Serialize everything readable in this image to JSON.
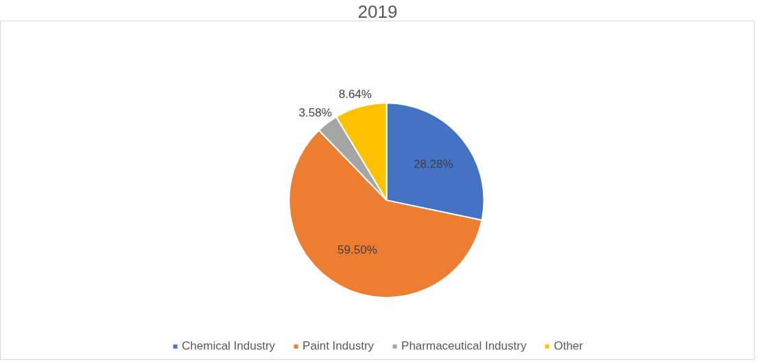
{
  "chart_data": {
    "type": "pie",
    "title": "2019",
    "categories": [
      "Chemical Industry",
      "Paint Industry",
      "Pharmaceutical Industry",
      "Other"
    ],
    "values": [
      28.28,
      59.5,
      3.58,
      8.64
    ],
    "colors": [
      "#4472c4",
      "#ed7d31",
      "#a5a5a5",
      "#ffc000"
    ],
    "value_labels": [
      "28.28%",
      "59.50%",
      "3.58%",
      "8.64%"
    ],
    "legend": "bottom"
  }
}
